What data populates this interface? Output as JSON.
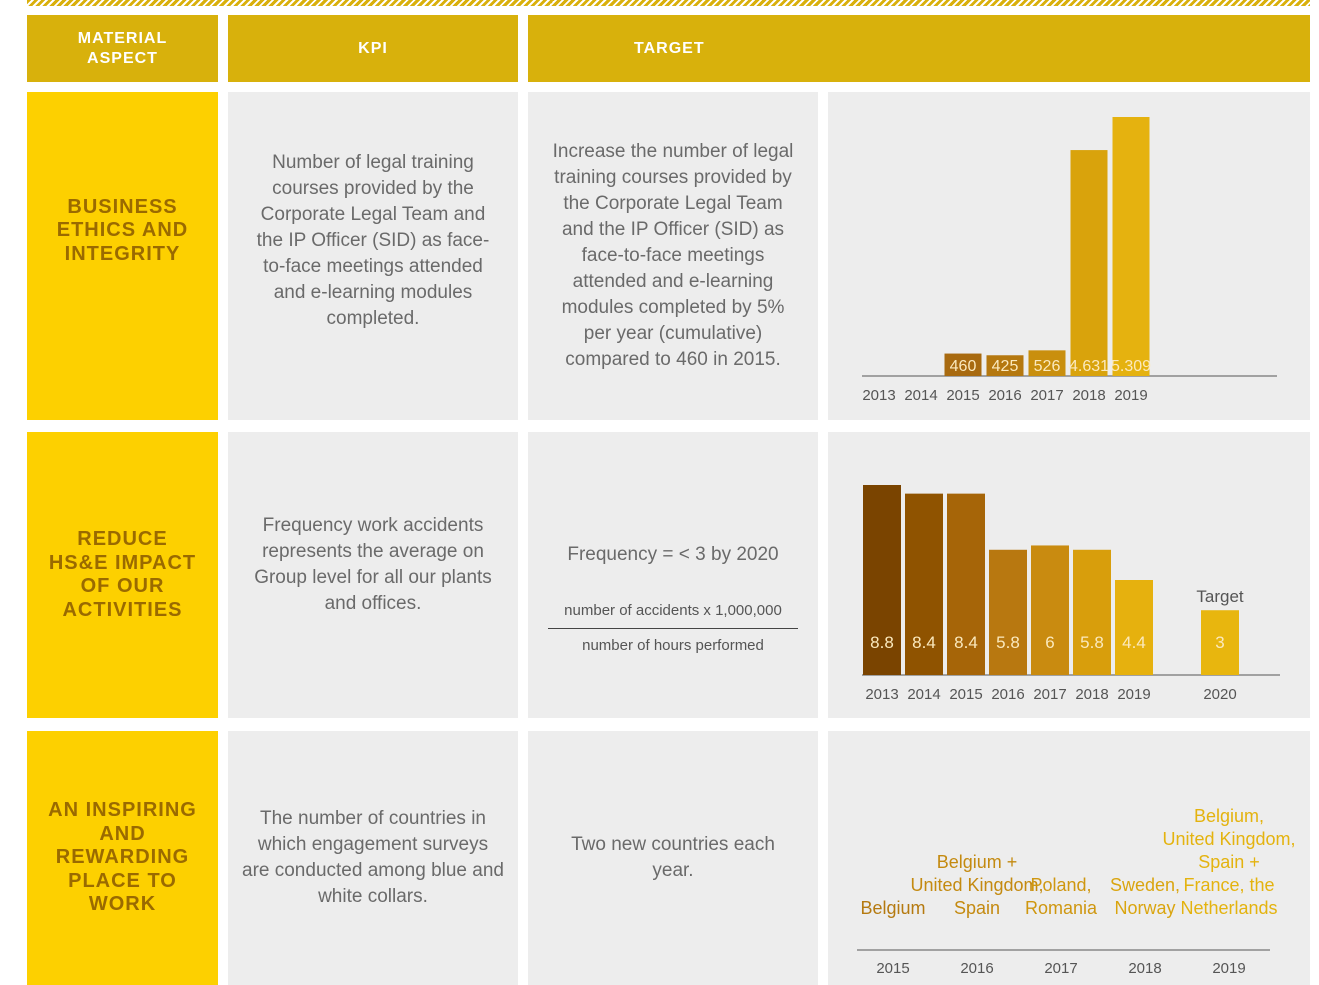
{
  "header": {
    "aspect": "MATERIAL ASPECT",
    "kpi": "KPI",
    "target": "TARGET"
  },
  "rows": [
    {
      "aspect": "BUSINESS ETHICS AND INTEGRITY",
      "kpi": "Number of legal training courses provided by the Corporate Legal Team and the IP Officer (SID) as face-to-face meetings attended and e-learning modules completed.",
      "target": "Increase the number of legal training courses provided by the Corporate Legal Team and the IP Officer (SID) as face-to-face meetings attended and e-learning modules completed by 5% per year (cumulative) compared to 460 in 2015.",
      "chart": {
        "type": "bar",
        "categories": [
          "2013",
          "2014",
          "2015",
          "2016",
          "2017",
          "2018",
          "2019"
        ],
        "values": [
          null,
          null,
          460,
          425,
          526,
          4631,
          5309
        ],
        "value_labels": [
          null,
          null,
          "460",
          "425",
          "526",
          "4.631",
          "5.309"
        ],
        "colors": [
          null,
          null,
          "#a86a10",
          "#b5780f",
          "#c98f0e",
          "#d9a30c",
          "#e5b20f"
        ]
      }
    },
    {
      "aspect": "REDUCE HS&E IMPACT OF OUR ACTIVITIES",
      "kpi": "Frequency work accidents represents the average on Group level for all our plants and offices.",
      "target": {
        "text": "Frequency = < 3 by 2020",
        "numerator": "number of accidents x 1,000,000",
        "denominator": "number of hours performed"
      },
      "chart": {
        "type": "bar",
        "categories": [
          "2013",
          "2014",
          "2015",
          "2016",
          "2017",
          "2018",
          "2019",
          "2020"
        ],
        "values": [
          8.8,
          8.4,
          8.4,
          5.8,
          6,
          5.8,
          4.4,
          3
        ],
        "colors": [
          "#7a4400",
          "#8f5300",
          "#a66508",
          "#b87810",
          "#c98b10",
          "#d89e0c",
          "#e6b10e",
          "#e8b60e"
        ],
        "annotation": "Target"
      }
    },
    {
      "aspect": "AN INSPIRING AND REWARDING PLACE TO WORK",
      "kpi": "The number of countries in which engagement surveys are conducted among blue and white collars.",
      "target": "Two new countries each year.",
      "chart": {
        "type": "timeline",
        "categories": [
          "2015",
          "2016",
          "2017",
          "2018",
          "2019"
        ],
        "labels": [
          [
            "Belgium"
          ],
          [
            "Belgium +",
            "United Kingdom,",
            "Spain"
          ],
          [
            "Poland,",
            "Romania"
          ],
          [
            "Sweden,",
            "Norway"
          ],
          [
            "Belgium,",
            "United Kingdom,",
            "Spain +",
            "France, the",
            "Netherlands"
          ]
        ],
        "colors": [
          "#b57a10",
          "#c48a10",
          "#cf9710",
          "#daa50f",
          "#e4b30f"
        ]
      }
    }
  ]
}
